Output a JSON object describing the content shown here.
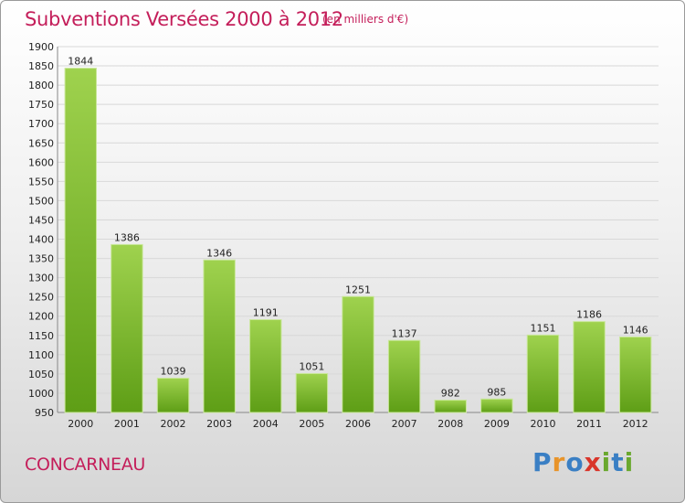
{
  "header": {
    "title": "Subventions Versées 2000 à 2012",
    "subtitle": "(en milliers d'€)"
  },
  "footer": {
    "city": "CONCARNEAU",
    "logo": "Proxiti"
  },
  "colors": {
    "accent": "#c41e5a",
    "bar_top": "#9fd24e",
    "bar_bottom": "#5e9e16"
  },
  "chart_data": {
    "type": "bar",
    "title": "Subventions Versées 2000 à 2012",
    "subtitle": "(en milliers d'€)",
    "xlabel": "",
    "ylabel": "",
    "categories": [
      "2000",
      "2001",
      "2002",
      "2003",
      "2004",
      "2005",
      "2006",
      "2007",
      "2008",
      "2009",
      "2010",
      "2011",
      "2012"
    ],
    "values": [
      1844,
      1386,
      1039,
      1346,
      1191,
      1051,
      1251,
      1137,
      982,
      985,
      1151,
      1186,
      1146
    ],
    "ylim": [
      950,
      1900
    ],
    "ytick_step": 50,
    "grid": true,
    "legend": "none"
  }
}
